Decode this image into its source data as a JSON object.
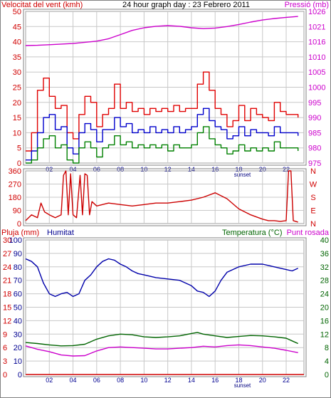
{
  "colors": {
    "frame": "#808080",
    "grid": "#c8c8c8",
    "wind_axis": "#d00000",
    "pressure_axis": "#cc00cc",
    "humidity_axis": "#000090",
    "temp_axis": "#006400",
    "wind_gust": "#e00000",
    "wind_avg": "#0000cc",
    "wind_min": "#008000",
    "pressure": "#cc00cc",
    "direction": "#cc0000",
    "humidity": "#0000aa",
    "temperature": "#006400",
    "dewpoint": "#cc00cc",
    "rain": "#d00000"
  },
  "chart_data": [
    {
      "type": "line",
      "title": "24 hour graph day : 23 Febrero 2011",
      "ylabel": "Velocitat del vent (kmh)",
      "y2label": "Pressió (mb)",
      "ylim": [
        0,
        50
      ],
      "y2lim": [
        975,
        1026
      ],
      "yticks": [
        "0",
        "5",
        "10",
        "15",
        "20",
        "25",
        "30",
        "35",
        "40",
        "45",
        "50"
      ],
      "y2ticks": [
        "975",
        "980",
        "985",
        "990",
        "995",
        "1000",
        "1005",
        "1010",
        "1016",
        "1021",
        "1026"
      ],
      "xlim": [
        0,
        23.5
      ],
      "xticks": [
        "02",
        "04",
        "06",
        "08",
        "10",
        "12",
        "14",
        "16",
        "18",
        "20",
        "22"
      ],
      "xtick_positions": [
        2,
        4,
        6,
        8,
        10,
        12,
        14,
        16,
        18,
        20,
        22
      ],
      "marker_label": "sunset",
      "marker_x": 18.3,
      "series": [
        {
          "name": "gust",
          "axis": "left",
          "color_key": "wind_gust",
          "x": [
            0,
            0.5,
            1,
            1.5,
            2,
            2.5,
            3,
            3.5,
            4,
            4.5,
            5,
            5.5,
            6,
            6.5,
            7,
            7.5,
            8,
            8.5,
            9,
            9.5,
            10,
            10.5,
            11,
            11.5,
            12,
            12.5,
            13,
            13.5,
            14,
            14.5,
            15,
            15.5,
            16,
            16.5,
            17,
            17.5,
            18,
            18.5,
            19,
            19.5,
            20,
            20.5,
            21,
            21.5,
            22,
            22.5,
            23
          ],
          "values": [
            4,
            10,
            24,
            28,
            22,
            18,
            19,
            10,
            8,
            16,
            22,
            20,
            12,
            16,
            18,
            26,
            18,
            20,
            17,
            18,
            16,
            18,
            17,
            18,
            17,
            19,
            17,
            18,
            18,
            26,
            30,
            24,
            18,
            16,
            12,
            14,
            19,
            14,
            18,
            16,
            15,
            14,
            20,
            17,
            16,
            16,
            15
          ]
        },
        {
          "name": "average",
          "axis": "left",
          "color_key": "wind_avg",
          "x": [
            0,
            0.5,
            1,
            1.5,
            2,
            2.5,
            3,
            3.5,
            4,
            4.5,
            5,
            5.5,
            6,
            6.5,
            7,
            7.5,
            8,
            8.5,
            9,
            9.5,
            10,
            10.5,
            11,
            11.5,
            12,
            12.5,
            13,
            13.5,
            14,
            14.5,
            15,
            15.5,
            16,
            16.5,
            17,
            17.5,
            18,
            18.5,
            19,
            19.5,
            20,
            20.5,
            21,
            21.5,
            22,
            22.5,
            23
          ],
          "values": [
            1,
            4,
            10,
            15,
            16,
            11,
            12,
            5,
            3,
            10,
            13,
            11,
            7,
            11,
            11,
            15,
            12,
            13,
            10,
            11,
            10,
            12,
            10,
            11,
            10,
            12,
            10,
            11,
            12,
            16,
            18,
            14,
            12,
            11,
            8,
            9,
            12,
            9,
            11,
            10,
            10,
            9,
            12,
            10,
            10,
            10,
            9
          ]
        },
        {
          "name": "minimum",
          "axis": "left",
          "color_key": "wind_min",
          "x": [
            0,
            0.5,
            1,
            1.5,
            2,
            2.5,
            3,
            3.5,
            4,
            4.5,
            5,
            5.5,
            6,
            6.5,
            7,
            7.5,
            8,
            8.5,
            9,
            9.5,
            10,
            10.5,
            11,
            11.5,
            12,
            12.5,
            13,
            13.5,
            14,
            14.5,
            15,
            15.5,
            16,
            16.5,
            17,
            17.5,
            18,
            18.5,
            19,
            19.5,
            20,
            20.5,
            21,
            21.5,
            22,
            22.5,
            23
          ],
          "values": [
            0,
            1,
            5,
            8,
            9,
            5,
            6,
            1,
            0,
            5,
            7,
            5,
            2,
            5,
            6,
            9,
            6,
            7,
            5,
            6,
            5,
            6,
            5,
            6,
            4,
            6,
            5,
            5,
            6,
            10,
            12,
            8,
            6,
            5,
            3,
            4,
            6,
            4,
            5,
            4,
            5,
            4,
            7,
            5,
            5,
            5,
            4
          ]
        },
        {
          "name": "pressure",
          "axis": "right",
          "color_key": "pressure",
          "x": [
            0,
            1,
            2,
            3,
            4,
            5,
            6,
            7,
            8,
            9,
            10,
            11,
            12,
            13,
            14,
            15,
            16,
            17,
            18,
            19,
            20,
            21,
            22,
            23
          ],
          "values": [
            1014.5,
            1014.6,
            1014.8,
            1015.0,
            1015.2,
            1015.6,
            1016.0,
            1016.8,
            1018.2,
            1019.6,
            1020.5,
            1021.0,
            1021.2,
            1021.0,
            1020.5,
            1020.2,
            1020.4,
            1020.9,
            1021.6,
            1022.4,
            1023.1,
            1023.6,
            1024.0,
            1024.3
          ]
        }
      ]
    },
    {
      "type": "line",
      "ylabel_right_letters": [
        "N",
        "W",
        "S",
        "E",
        "N"
      ],
      "ylim": [
        0,
        360
      ],
      "yticks": [
        "0",
        "90",
        "180",
        "270",
        "360"
      ],
      "xlim": [
        0,
        23.5
      ],
      "xticks": [
        "02",
        "04",
        "06",
        "08",
        "10",
        "12",
        "14",
        "16",
        "18",
        "20",
        "22"
      ],
      "xtick_positions": [
        2,
        4,
        6,
        8,
        10,
        12,
        14,
        16,
        18,
        20,
        22
      ],
      "series": [
        {
          "name": "direction",
          "color_key": "direction",
          "x": [
            0,
            0.5,
            1,
            1.3,
            1.6,
            2,
            2.5,
            3,
            3.2,
            3.4,
            3.6,
            3.8,
            4,
            4.3,
            4.6,
            4.8,
            5,
            5.2,
            5.4,
            5.6,
            6,
            7,
            8,
            9,
            10,
            11,
            12,
            13,
            14,
            15,
            16,
            17,
            18,
            19,
            20,
            20.5,
            21,
            21.5,
            22,
            22.2,
            22.4,
            22.6,
            23
          ],
          "values": [
            20,
            60,
            40,
            140,
            80,
            60,
            40,
            60,
            330,
            360,
            60,
            340,
            60,
            40,
            330,
            60,
            340,
            330,
            60,
            150,
            120,
            140,
            130,
            120,
            130,
            140,
            140,
            150,
            160,
            180,
            210,
            170,
            100,
            60,
            30,
            20,
            20,
            15,
            20,
            360,
            360,
            20,
            10
          ]
        }
      ]
    },
    {
      "type": "line",
      "left_title": "Pluja (mm)",
      "left_title2": "Humitat",
      "right_title": "Temperatura (°C)",
      "right_title2": "Punt rosada",
      "ylim_rain": [
        0,
        30
      ],
      "ylim_humidity": [
        0,
        100
      ],
      "ylim_temp": [
        0,
        40
      ],
      "yticks_rain": [
        "0",
        "3",
        "6",
        "9",
        "12",
        "15",
        "18",
        "21",
        "24",
        "27",
        "30"
      ],
      "yticks_humidity": [
        "0",
        "10",
        "20",
        "30",
        "40",
        "50",
        "60",
        "70",
        "80",
        "90",
        "100"
      ],
      "yticks_temp": [
        "0",
        "4",
        "8",
        "12",
        "16",
        "20",
        "24",
        "28",
        "32",
        "36",
        "40"
      ],
      "xlim": [
        0,
        23.5
      ],
      "xticks": [
        "02",
        "04",
        "06",
        "08",
        "10",
        "12",
        "14",
        "16",
        "18",
        "20",
        "22"
      ],
      "xtick_positions": [
        2,
        4,
        6,
        8,
        10,
        12,
        14,
        16,
        18,
        20,
        22
      ],
      "marker_label": "sunset",
      "marker_x": 18.3,
      "series": [
        {
          "name": "humidity",
          "axis": "humidity",
          "color_key": "humidity",
          "x": [
            0,
            0.5,
            1,
            1.5,
            2,
            2.5,
            3,
            3.5,
            4,
            4.5,
            5,
            5.5,
            6,
            6.5,
            7,
            7.5,
            8,
            8.5,
            9,
            9.5,
            10,
            11,
            12,
            13,
            14,
            14.5,
            15,
            15.5,
            16,
            16.5,
            17,
            18,
            19,
            20,
            21,
            22,
            22.5,
            23
          ],
          "values": [
            86,
            84,
            80,
            68,
            60,
            58,
            60,
            61,
            58,
            60,
            70,
            74,
            80,
            84,
            86,
            85,
            82,
            80,
            77,
            75,
            74,
            72,
            71,
            70,
            66,
            62,
            61,
            58,
            62,
            70,
            76,
            80,
            82,
            82,
            80,
            78,
            77,
            79
          ]
        },
        {
          "name": "temperature",
          "axis": "temp",
          "color_key": "temperature",
          "x": [
            0,
            1,
            2,
            3,
            4,
            5,
            6,
            7,
            8,
            9,
            10,
            11,
            12,
            13,
            14,
            14.5,
            15,
            16,
            17,
            18,
            19,
            20,
            21,
            22,
            22.5,
            23
          ],
          "values": [
            9.5,
            9.2,
            8.8,
            8.5,
            8.6,
            9.0,
            10.5,
            11.5,
            12.0,
            11.8,
            11.2,
            11.0,
            11.2,
            11.5,
            12.2,
            12.5,
            12.0,
            11.5,
            11.0,
            11.3,
            11.6,
            11.5,
            11.2,
            10.8,
            10.0,
            9.2
          ]
        },
        {
          "name": "dewpoint",
          "axis": "temp",
          "color_key": "dewpoint",
          "x": [
            0,
            1,
            2,
            3,
            4,
            5,
            6,
            7,
            8,
            9,
            10,
            11,
            12,
            13,
            14,
            15,
            16,
            17,
            18,
            19,
            20,
            21,
            22,
            23
          ],
          "values": [
            8.5,
            7.5,
            6.8,
            5.8,
            5.5,
            5.6,
            7.0,
            8.0,
            8.2,
            8.0,
            7.8,
            7.6,
            7.6,
            7.8,
            8.0,
            8.4,
            8.2,
            8.6,
            8.8,
            8.6,
            8.2,
            7.8,
            7.2,
            6.5
          ]
        },
        {
          "name": "rain",
          "axis": "rain",
          "color_key": "rain",
          "x": [
            0,
            23.5
          ],
          "values": [
            0,
            0
          ]
        }
      ]
    }
  ]
}
